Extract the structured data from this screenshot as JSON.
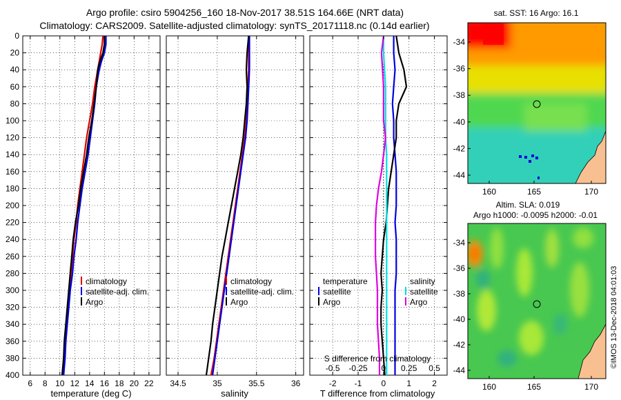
{
  "title": {
    "line1": "Argo profile: csiro 5904256_160 18-Nov-2017 38.51S 164.66E (NRT data)",
    "line2": "Climatology: CARS2009. Satellite-adjusted climatology: synTS_20171118.nc (0.14d earlier)"
  },
  "depth_ticks": [
    "0",
    "20",
    "40",
    "60",
    "80",
    "100",
    "120",
    "140",
    "160",
    "180",
    "200",
    "220",
    "240",
    "260",
    "280",
    "300",
    "320",
    "340",
    "360",
    "380",
    "400"
  ],
  "sst_panel": {
    "title": "sat. SST: 16 Argo: 16.1",
    "lat_ticks": [
      "-34",
      "-36",
      "-38",
      "-40",
      "-42",
      "-44"
    ],
    "lon_ticks": [
      "160",
      "165",
      "170"
    ]
  },
  "sla_panel": {
    "title1": "Altim. SLA: 0.019",
    "title2": "Argo h1000: -0.0095 h2000: -0.01",
    "lat_ticks": [
      "-34",
      "-36",
      "-38",
      "-40",
      "-42",
      "-44"
    ],
    "lon_ticks": [
      "160",
      "165",
      "170"
    ]
  },
  "credit": "©IMOS 13-Dec-2018 04:01:03",
  "colors": {
    "climatology": "#e00000",
    "satellite": "#0000e0",
    "argo": "#000000",
    "sat_salinity": "#00e0e0",
    "argo_salinity": "#e000e0"
  },
  "chart_data": [
    {
      "type": "line",
      "name": "temperature",
      "xlabel": "temperature (deg C)",
      "ylabel": "depth",
      "xlim": [
        5,
        23.5
      ],
      "ylim": [
        400,
        0
      ],
      "xticks": [
        "6",
        "8",
        "10",
        "12",
        "14",
        "16",
        "18",
        "20",
        "22"
      ],
      "legend": [
        "climatology",
        "satellite-adj. clim.",
        "Argo"
      ],
      "depth": [
        0,
        10,
        20,
        30,
        40,
        50,
        60,
        80,
        100,
        120,
        140,
        160,
        180,
        200,
        220,
        240,
        260,
        280,
        300,
        320,
        340,
        360,
        380,
        400
      ],
      "series": [
        {
          "name": "climatology",
          "values": [
            15.8,
            15.7,
            15.5,
            15.3,
            15.1,
            14.9,
            14.7,
            14.4,
            14.0,
            13.6,
            13.3,
            13.0,
            12.7,
            12.4,
            12.2,
            11.9,
            11.7,
            11.5,
            11.3,
            11.1,
            10.9,
            10.7,
            10.6,
            10.4
          ]
        },
        {
          "name": "satellite-adj. clim.",
          "values": [
            16.2,
            16.2,
            16.0,
            15.6,
            15.3,
            15.1,
            14.9,
            14.7,
            14.4,
            14.1,
            13.8,
            13.4,
            13.0,
            12.7,
            12.4,
            12.2,
            11.9,
            11.7,
            11.4,
            11.2,
            11.0,
            10.8,
            10.7,
            10.5
          ]
        },
        {
          "name": "Argo",
          "values": [
            16.0,
            16.0,
            15.8,
            15.4,
            15.1,
            15.0,
            14.9,
            14.6,
            14.3,
            13.9,
            13.6,
            13.2,
            12.8,
            12.5,
            12.1,
            11.8,
            11.6,
            11.4,
            11.2,
            11.0,
            10.8,
            10.6,
            10.5,
            10.3
          ]
        }
      ]
    },
    {
      "type": "line",
      "name": "salinity",
      "xlabel": "salinity",
      "ylabel": "depth",
      "xlim": [
        34.35,
        36.1
      ],
      "ylim": [
        400,
        0
      ],
      "xticks": [
        "34.5",
        "35",
        "35.5",
        "36"
      ],
      "legend": [
        "climatology",
        "satellite-adj. clim.",
        "Argo"
      ],
      "depth": [
        0,
        20,
        40,
        60,
        80,
        100,
        120,
        140,
        160,
        180,
        200,
        220,
        240,
        260,
        280,
        300,
        320,
        340,
        360,
        380,
        400
      ],
      "series": [
        {
          "name": "climatology",
          "values": [
            35.4,
            35.4,
            35.4,
            35.39,
            35.38,
            35.37,
            35.35,
            35.32,
            35.29,
            35.26,
            35.23,
            35.2,
            35.17,
            35.14,
            35.11,
            35.08,
            35.05,
            35.02,
            34.99,
            34.96,
            34.92
          ]
        },
        {
          "name": "satellite-adj. clim.",
          "values": [
            35.41,
            35.41,
            35.41,
            35.4,
            35.39,
            35.38,
            35.36,
            35.33,
            35.3,
            35.27,
            35.24,
            35.21,
            35.18,
            35.15,
            35.12,
            35.09,
            35.06,
            35.03,
            35.0,
            34.97,
            34.94
          ]
        },
        {
          "name": "Argo",
          "values": [
            35.4,
            35.38,
            35.37,
            35.38,
            35.37,
            35.35,
            35.33,
            35.3,
            35.26,
            35.22,
            35.18,
            35.14,
            35.1,
            35.06,
            35.03,
            35.0,
            34.97,
            34.94,
            34.92,
            34.89,
            34.86
          ]
        }
      ]
    },
    {
      "type": "line",
      "name": "difference from climatology",
      "xlabel": "T difference from climatology",
      "x2label": "S difference from climatology",
      "ylabel": "depth",
      "xlim": [
        -2.9,
        2.5
      ],
      "x2lim": [
        -0.725,
        0.625
      ],
      "ylim": [
        400,
        0
      ],
      "xticks": [
        "-2",
        "-1",
        "0",
        "1",
        "2"
      ],
      "x2ticks": [
        "-0.5",
        "-0.25",
        "0",
        "0.25",
        "0.5"
      ],
      "legend_temperature": {
        "title": "temperature",
        "items": [
          "satellite",
          "Argo"
        ]
      },
      "legend_salinity": {
        "title": "salinity",
        "items": [
          "satellite",
          "Argo"
        ]
      },
      "depth": [
        0,
        20,
        40,
        60,
        80,
        100,
        120,
        140,
        160,
        180,
        200,
        220,
        240,
        260,
        280,
        300,
        320,
        340,
        360,
        380,
        400
      ],
      "series": [
        {
          "name": "temperature satellite",
          "values": [
            0.4,
            0.4,
            0.45,
            0.4,
            0.35,
            0.4,
            0.4,
            0.45,
            0.5,
            0.5,
            0.5,
            0.45,
            0.5,
            0.5,
            0.5,
            0.45,
            0.45,
            0.45,
            0.45,
            0.45,
            0.45
          ]
        },
        {
          "name": "temperature Argo",
          "values": [
            0.5,
            0.6,
            0.8,
            0.9,
            0.6,
            0.5,
            0.5,
            0.4,
            0.3,
            0.2,
            0.15,
            0.1,
            0.0,
            -0.05,
            -0.1,
            -0.05,
            -0.1,
            -0.1,
            -0.05,
            0.0,
            0.05
          ]
        },
        {
          "name": "salinity satellite",
          "values": [
            0.0,
            0.0,
            0.01,
            0.02,
            0.02,
            0.02,
            0.02,
            0.03,
            0.03,
            0.03,
            0.03,
            0.03,
            0.03,
            0.03,
            0.03,
            0.03,
            0.03,
            0.03,
            0.03,
            0.03,
            0.03
          ]
        },
        {
          "name": "salinity Argo",
          "values": [
            0.0,
            -0.02,
            -0.01,
            0.0,
            0.0,
            0.0,
            0.02,
            0.0,
            -0.02,
            -0.05,
            -0.07,
            -0.08,
            -0.08,
            -0.08,
            -0.07,
            -0.06,
            -0.06,
            -0.06,
            -0.05,
            -0.04,
            -0.04
          ]
        }
      ]
    }
  ]
}
